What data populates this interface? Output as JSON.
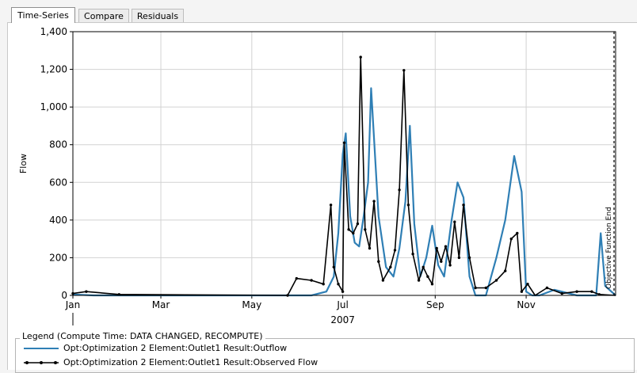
{
  "tabs": [
    {
      "label": "Time-Series",
      "active": true
    },
    {
      "label": "Compare",
      "active": false
    },
    {
      "label": "Residuals",
      "active": false
    }
  ],
  "legend": {
    "title": "Legend (Compute Time: DATA CHANGED, RECOMPUTE)",
    "items": [
      {
        "label": "Opt:Optimization 2 Element:Outlet1 Result:Outflow",
        "color": "#2f7fb5",
        "marker": "none"
      },
      {
        "label": "Opt:Optimization 2 Element:Outlet1 Result:Observed Flow",
        "color": "#000000",
        "marker": "dot"
      }
    ]
  },
  "chart_data": {
    "type": "line",
    "ylabel": "Flow",
    "xlabel": "2007",
    "ylim": [
      0,
      1400
    ],
    "yticks": [
      0,
      200,
      400,
      600,
      800,
      1000,
      1200,
      1400
    ],
    "ytick_labels": [
      "0",
      "200",
      "400",
      "600",
      "800",
      "1,000",
      "1,200",
      "1,400"
    ],
    "xlim": [
      "2007-01-01",
      "2007-12-31"
    ],
    "xticks": [
      "2007-01-01",
      "2007-03-01",
      "2007-05-01",
      "2007-07-01",
      "2007-09-01",
      "2007-11-01"
    ],
    "xtick_labels": [
      "Jan",
      "Mar",
      "May",
      "Jul",
      "Sep",
      "Nov"
    ],
    "grid": true,
    "annotation": {
      "label": "Objective Function End",
      "x": "2007-12-31"
    },
    "series": [
      {
        "name": "Opt:Optimization 2 Element:Outlet1 Result:Outflow",
        "color": "#2f7fb5",
        "x": [
          "2007-01-01",
          "2007-01-15",
          "2007-02-01",
          "2007-06-10",
          "2007-06-20",
          "2007-06-25",
          "2007-06-28",
          "2007-07-01",
          "2007-07-03",
          "2007-07-06",
          "2007-07-09",
          "2007-07-12",
          "2007-07-15",
          "2007-07-18",
          "2007-07-20",
          "2007-07-25",
          "2007-07-30",
          "2007-08-04",
          "2007-08-08",
          "2007-08-12",
          "2007-08-15",
          "2007-08-18",
          "2007-08-22",
          "2007-08-26",
          "2007-08-30",
          "2007-09-03",
          "2007-09-07",
          "2007-09-12",
          "2007-09-16",
          "2007-09-20",
          "2007-09-24",
          "2007-09-28",
          "2007-10-05",
          "2007-10-12",
          "2007-10-18",
          "2007-10-24",
          "2007-10-29",
          "2007-11-01",
          "2007-11-05",
          "2007-11-10",
          "2007-11-20",
          "2007-12-05",
          "2007-12-18",
          "2007-12-21",
          "2007-12-24",
          "2007-12-31"
        ],
        "values": [
          5,
          0,
          0,
          0,
          20,
          100,
          330,
          750,
          860,
          420,
          280,
          260,
          420,
          600,
          1100,
          420,
          150,
          100,
          250,
          500,
          900,
          380,
          100,
          200,
          370,
          160,
          100,
          400,
          600,
          520,
          100,
          0,
          0,
          200,
          400,
          740,
          550,
          20,
          0,
          0,
          30,
          0,
          0,
          330,
          50,
          0
        ]
      },
      {
        "name": "Opt:Optimization 2 Element:Outlet1 Result:Observed Flow",
        "color": "#000000",
        "x": [
          "2007-01-01",
          "2007-01-10",
          "2007-02-01",
          "2007-05-25",
          "2007-05-31",
          "2007-06-10",
          "2007-06-18",
          "2007-06-23",
          "2007-06-25",
          "2007-06-28",
          "2007-07-01",
          "2007-07-02",
          "2007-07-05",
          "2007-07-08",
          "2007-07-11",
          "2007-07-13",
          "2007-07-16",
          "2007-07-19",
          "2007-07-22",
          "2007-07-25",
          "2007-07-28",
          "2007-08-02",
          "2007-08-05",
          "2007-08-08",
          "2007-08-11",
          "2007-08-14",
          "2007-08-17",
          "2007-08-21",
          "2007-08-24",
          "2007-08-27",
          "2007-08-30",
          "2007-09-02",
          "2007-09-05",
          "2007-09-08",
          "2007-09-11",
          "2007-09-14",
          "2007-09-17",
          "2007-09-20",
          "2007-09-24",
          "2007-09-28",
          "2007-10-05",
          "2007-10-12",
          "2007-10-18",
          "2007-10-22",
          "2007-10-26",
          "2007-10-29",
          "2007-11-02",
          "2007-11-07",
          "2007-11-15",
          "2007-11-25",
          "2007-12-05",
          "2007-12-15",
          "2007-12-20",
          "2007-12-31"
        ],
        "values": [
          10,
          20,
          5,
          0,
          90,
          80,
          60,
          480,
          150,
          60,
          20,
          810,
          350,
          330,
          380,
          1265,
          350,
          250,
          500,
          180,
          80,
          150,
          240,
          560,
          1195,
          480,
          220,
          80,
          150,
          100,
          60,
          250,
          180,
          260,
          160,
          390,
          200,
          480,
          200,
          40,
          40,
          80,
          130,
          300,
          330,
          20,
          60,
          0,
          40,
          10,
          20,
          20,
          5,
          0
        ]
      }
    ]
  }
}
